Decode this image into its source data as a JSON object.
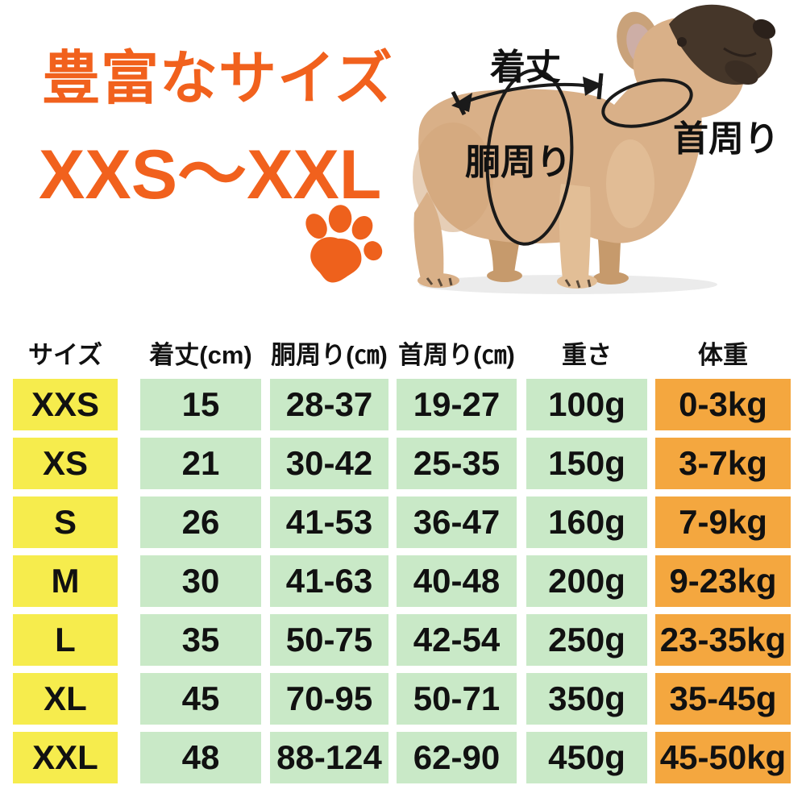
{
  "title": {
    "line1": "豊富なサイズ",
    "line2": "XXS〜XXL"
  },
  "colors": {
    "accent_orange": "#F1611D",
    "paw_orange": "#EE611C",
    "cell_yellow": "#F6EC4D",
    "cell_green": "#C9E9C7",
    "cell_orange": "#F4A73F",
    "annotation_black": "#1A1A1A"
  },
  "diagram": {
    "length_label": "着丈",
    "girth_label": "胴周り",
    "neck_label": "首周り"
  },
  "table": {
    "headers": [
      "サイズ",
      "着丈(cm)",
      "胴周り(㎝)",
      "首周り(㎝)",
      "重さ",
      "体重"
    ],
    "column_keys": [
      "size",
      "length-cm",
      "girth-cm",
      "neck-cm",
      "weight",
      "body-weight"
    ],
    "cell_colors": {
      "size": "#F6EC4D",
      "measure": "#C9E9C7",
      "body_weight": "#F4A73F"
    },
    "rows": [
      [
        "XXS",
        "15",
        "28-37",
        "19-27",
        "100g",
        "0-3kg"
      ],
      [
        "XS",
        "21",
        "30-42",
        "25-35",
        "150g",
        "3-7kg"
      ],
      [
        "S",
        "26",
        "41-53",
        "36-47",
        "160g",
        "7-9kg"
      ],
      [
        "M",
        "30",
        "41-63",
        "40-48",
        "200g",
        "9-23kg"
      ],
      [
        "L",
        "35",
        "50-75",
        "42-54",
        "250g",
        "23-35kg"
      ],
      [
        "XL",
        "45",
        "70-95",
        "50-71",
        "350g",
        "35-45g"
      ],
      [
        "XXL",
        "48",
        "88-124",
        "62-90",
        "450g",
        "45-50kg"
      ]
    ]
  },
  "chart_data": {
    "type": "table",
    "title": "豊富なサイズ XXS〜XXL",
    "columns": [
      "サイズ",
      "着丈(cm)",
      "胴周り(㎝)",
      "首周り(㎝)",
      "重さ",
      "体重"
    ],
    "rows": [
      [
        "XXS",
        "15",
        "28-37",
        "19-27",
        "100g",
        "0-3kg"
      ],
      [
        "XS",
        "21",
        "30-42",
        "25-35",
        "150g",
        "3-7kg"
      ],
      [
        "S",
        "26",
        "41-53",
        "36-47",
        "160g",
        "7-9kg"
      ],
      [
        "M",
        "30",
        "41-63",
        "40-48",
        "200g",
        "9-23kg"
      ],
      [
        "L",
        "35",
        "50-75",
        "42-54",
        "250g",
        "23-35kg"
      ],
      [
        "XL",
        "45",
        "70-95",
        "50-71",
        "350g",
        "35-45g"
      ],
      [
        "XXL",
        "48",
        "88-124",
        "62-90",
        "450g",
        "45-50kg"
      ]
    ]
  }
}
